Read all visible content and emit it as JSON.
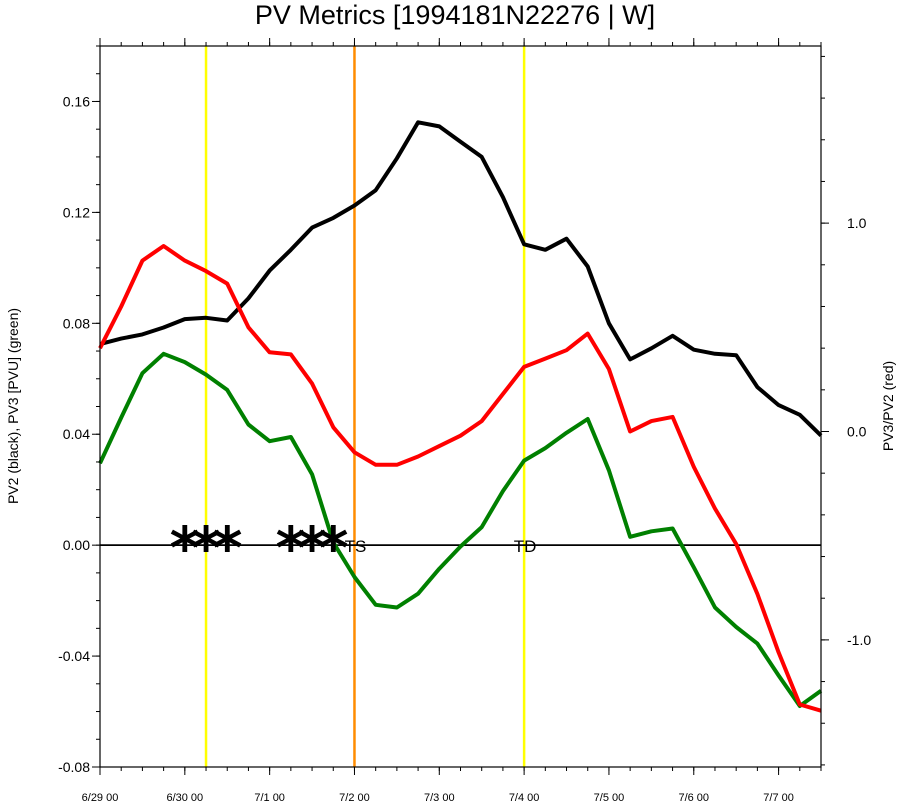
{
  "chart_data": {
    "type": "line",
    "title": "PV Metrics [1994181N22276 | W]",
    "ylabel_left": "PV2 (black), PV3 [PVU] (green)",
    "ylabel_right": "PV3/PV2 (red)",
    "ylim_left": [
      -0.08,
      0.18
    ],
    "ylim_right": [
      -1.61,
      1.85
    ],
    "xlim": [
      0,
      8.5
    ],
    "yticks_left": [
      {
        "value": 0.16,
        "label": "0.16"
      },
      {
        "value": 0.12,
        "label": "0.12"
      },
      {
        "value": 0.08,
        "label": "0.08"
      },
      {
        "value": 0.04,
        "label": "0.04"
      },
      {
        "value": 0.0,
        "label": "0.00"
      },
      {
        "value": -0.04,
        "label": "-0.04"
      },
      {
        "value": -0.08,
        "label": "-0.08"
      }
    ],
    "yticks_right": [
      {
        "value": 1.0,
        "label": "1.0"
      },
      {
        "value": 0.0,
        "label": "0.0"
      },
      {
        "value": -1.0,
        "label": "-1.0"
      }
    ],
    "xticks": [
      {
        "value": 0,
        "label": "6/29 00"
      },
      {
        "value": 1,
        "label": "6/30 00"
      },
      {
        "value": 2,
        "label": "7/1 00"
      },
      {
        "value": 3,
        "label": "7/2 00"
      },
      {
        "value": 4,
        "label": "7/3 00"
      },
      {
        "value": 5,
        "label": "7/4 00"
      },
      {
        "value": 6,
        "label": "7/5 00"
      },
      {
        "value": 7,
        "label": "7/6 00"
      },
      {
        "value": 8,
        "label": "7/7 00"
      }
    ],
    "x": [
      0.0,
      0.25,
      0.5,
      0.75,
      1.0,
      1.25,
      1.5,
      1.75,
      2.0,
      2.25,
      2.5,
      2.75,
      3.0,
      3.25,
      3.5,
      3.75,
      4.0,
      4.25,
      4.5,
      4.75,
      5.0,
      5.25,
      5.5,
      5.75,
      6.0,
      6.25,
      6.5,
      6.75,
      7.0,
      7.25,
      7.5,
      7.75,
      8.0,
      8.25,
      8.5
    ],
    "series": [
      {
        "name": "PV2",
        "axis": "left",
        "color": "#000000",
        "values": [
          0.0725,
          0.0745,
          0.076,
          0.0785,
          0.0815,
          0.082,
          0.081,
          0.089,
          0.099,
          0.1065,
          0.1145,
          0.118,
          0.1225,
          0.128,
          0.1395,
          0.1525,
          0.151,
          0.1455,
          0.14,
          0.1255,
          0.1085,
          0.1065,
          0.1105,
          0.1005,
          0.08,
          0.067,
          0.071,
          0.0755,
          0.0705,
          0.069,
          0.0685,
          0.057,
          0.0505,
          0.047,
          0.0395
        ]
      },
      {
        "name": "PV3",
        "axis": "left",
        "color": "#008000",
        "values": [
          0.0295,
          0.046,
          0.062,
          0.069,
          0.066,
          0.0615,
          0.056,
          0.0435,
          0.0375,
          0.039,
          0.0255,
          0.001,
          -0.0115,
          -0.0215,
          -0.0225,
          -0.0175,
          -0.0085,
          -0.0005,
          0.0065,
          0.0195,
          0.0305,
          0.035,
          0.0405,
          0.0455,
          0.027,
          0.003,
          0.005,
          0.006,
          -0.008,
          -0.0225,
          -0.0295,
          -0.0355,
          -0.047,
          -0.058,
          -0.0525
        ]
      },
      {
        "name": "PV3/PV2",
        "axis": "right",
        "color": "#ff0000",
        "values": [
          0.4,
          0.6,
          0.82,
          0.89,
          0.82,
          0.77,
          0.71,
          0.5,
          0.38,
          0.37,
          0.23,
          0.02,
          -0.1,
          -0.16,
          -0.16,
          -0.12,
          -0.07,
          -0.02,
          0.05,
          0.18,
          0.31,
          0.35,
          0.39,
          0.47,
          0.3,
          0.0,
          0.05,
          0.07,
          -0.17,
          -0.37,
          -0.54,
          -0.78,
          -1.06,
          -1.31,
          -1.34
        ]
      }
    ],
    "vlines": [
      {
        "x": 1.25,
        "color": "#ffff00"
      },
      {
        "x": 3.0,
        "color": "#ff8c00"
      },
      {
        "x": 5.0,
        "color": "#ffff00"
      }
    ],
    "zero_line": true,
    "markers": [
      {
        "x": 1.0,
        "y": 0.0,
        "symbol": "*"
      },
      {
        "x": 1.25,
        "y": 0.0,
        "symbol": "*"
      },
      {
        "x": 1.5,
        "y": 0.0,
        "symbol": "*"
      },
      {
        "x": 2.25,
        "y": 0.0,
        "symbol": "*"
      },
      {
        "x": 2.5,
        "y": 0.0,
        "symbol": "*"
      },
      {
        "x": 2.75,
        "y": 0.0,
        "symbol": "*"
      }
    ],
    "annotations": [
      {
        "x": 3.0,
        "y": 0.0,
        "text": "TS"
      },
      {
        "x": 5.0,
        "y": 0.0,
        "text": "TD"
      }
    ],
    "grid": false
  }
}
